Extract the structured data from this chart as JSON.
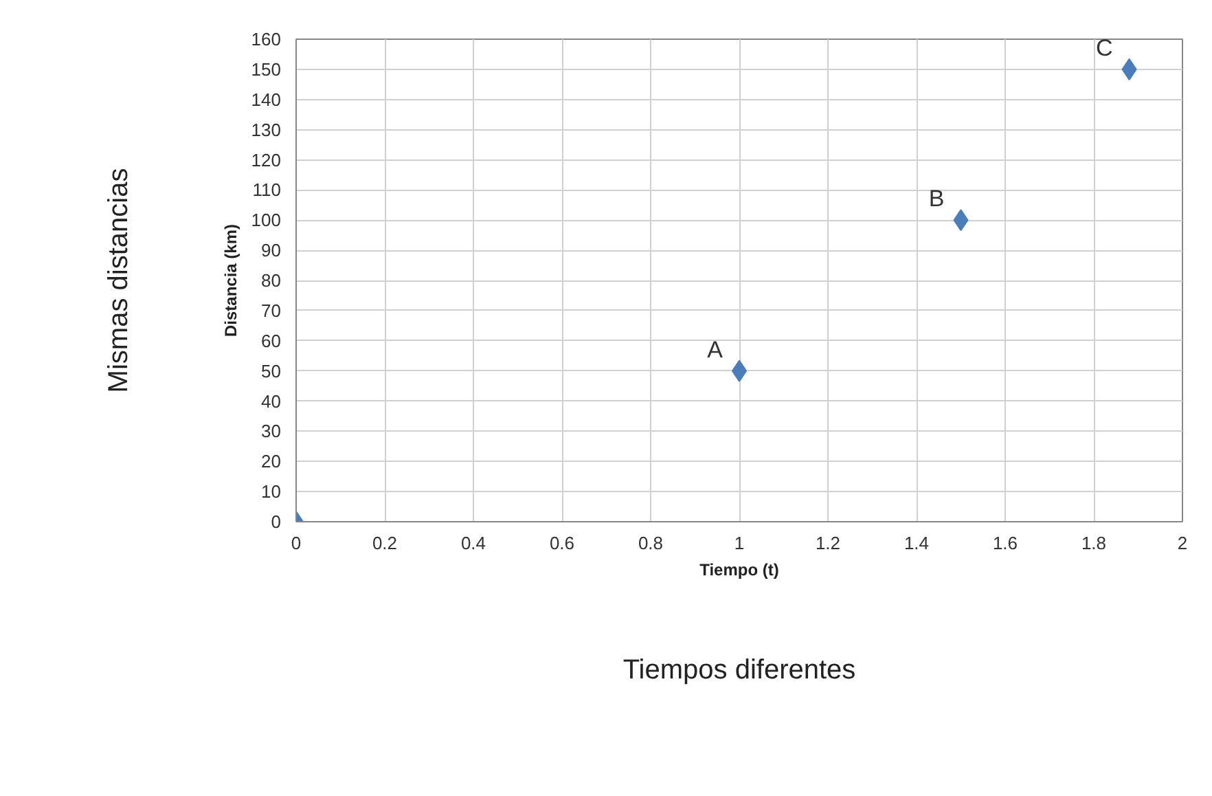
{
  "chart_data": {
    "type": "scatter",
    "xlabel": "Tiempo (t)",
    "ylabel": "Distancia (km)",
    "x": [
      0,
      1,
      1.5,
      1.88
    ],
    "series": [
      {
        "color": "#4a7ebb",
        "values": [
          0,
          50,
          100,
          150
        ]
      }
    ],
    "xlim": [
      0,
      2
    ],
    "xticks": [
      0,
      0.2,
      0.4,
      0.6,
      0.8,
      1,
      1.2,
      1.4,
      1.6,
      1.8,
      2
    ],
    "ylim": [
      0,
      160
    ],
    "yticks": [
      0,
      10,
      20,
      30,
      40,
      50,
      60,
      70,
      80,
      90,
      100,
      110,
      120,
      130,
      140,
      150,
      160
    ],
    "grid": true,
    "marker": "diamond",
    "annotations": [
      {
        "text": "A",
        "x": 1,
        "y": 50
      },
      {
        "text": "B",
        "x": 1.5,
        "y": 100
      },
      {
        "text": "C",
        "x": 1.88,
        "y": 150
      },
      "Mismas distancias",
      "Tiempos diferentes"
    ]
  }
}
